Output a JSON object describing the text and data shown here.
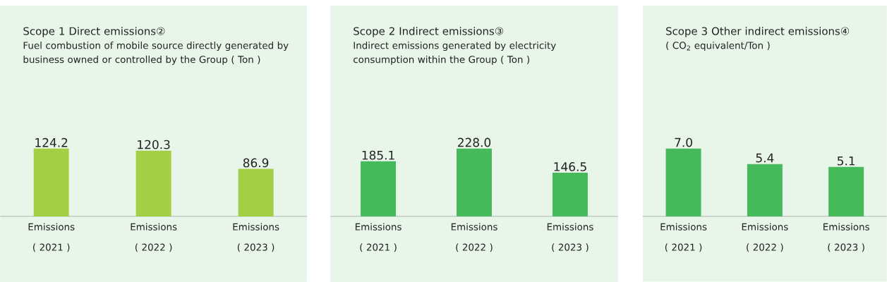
{
  "chart_data": [
    {
      "type": "bar",
      "title": "Scope 1 Direct emissions②",
      "subtitle": "Fuel combustion of mobile source directly generated by business owned or controlled by the Group ( Ton )",
      "categories": [
        "Emissions ( 2021 )",
        "Emissions ( 2022 )",
        "Emissions ( 2023 )"
      ],
      "values": [
        124.2,
        120.3,
        86.9
      ],
      "value_labels": [
        "124.2",
        "120.3",
        "86.9"
      ],
      "color": "#a3cf45"
    },
    {
      "type": "bar",
      "title": "Scope 2 Indirect emissions③",
      "subtitle": "Indirect emissions generated by electricity consumption within the Group ( Ton )",
      "categories": [
        "Emissions ( 2021 )",
        "Emissions ( 2022 )",
        "Emissions ( 2023 )"
      ],
      "values": [
        185.1,
        228.0,
        146.5
      ],
      "value_labels": [
        "185.1",
        "228.0",
        "146.5"
      ],
      "color": "#46b95a"
    },
    {
      "type": "bar",
      "title": "Scope 3 Other indirect emissions④",
      "subtitle": "( CO$_{2}$ equivalent/Ton )",
      "categories": [
        "Emissions ( 2021 )",
        "Emissions ( 2022 )",
        "Emissions ( 2023 )"
      ],
      "values": [
        7.0,
        5.4,
        5.1
      ],
      "value_labels": [
        "7.0",
        "5.4",
        "5.1"
      ],
      "color": "#46b95a"
    }
  ]
}
